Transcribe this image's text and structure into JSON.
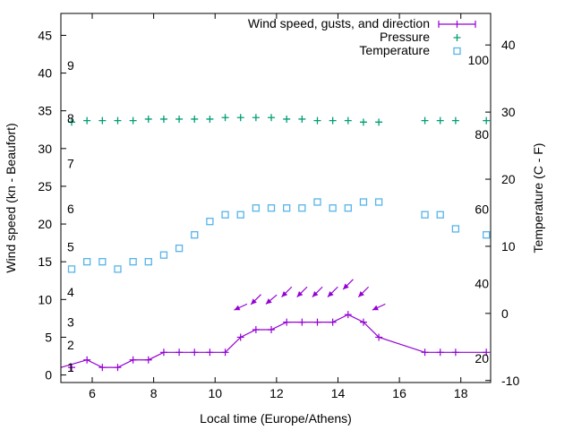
{
  "chart_data": {
    "type": "line",
    "title": "",
    "xlabel": "Local time (Europe/Athens)",
    "ylabel": "Wind speed (kn - Beaufort)",
    "y2label": "Temperature (C - F)",
    "xlim": [
      4.98,
      18.97
    ],
    "ylim": [
      -1.0,
      47.9
    ],
    "y2lim": [
      -10.3,
      44.7
    ],
    "grid": false,
    "legend_position": "top-right",
    "x_ticks": [
      "6",
      "8",
      "10",
      "12",
      "14",
      "16",
      "18"
    ],
    "y_ticks": [
      "0",
      "5",
      "10",
      "15",
      "20",
      "25",
      "30",
      "35",
      "40",
      "45"
    ],
    "y2_ticks": [
      "-10",
      "0",
      "10",
      "20",
      "30",
      "40"
    ],
    "fahrenheit_labels": [
      "20",
      "40",
      "60",
      "80",
      "100"
    ],
    "beaufort_labels": [
      "1",
      "2",
      "3",
      "4",
      "5",
      "6",
      "7",
      "8",
      "9"
    ],
    "beaufort_kn": [
      1,
      4,
      7,
      11,
      17,
      22,
      28,
      34,
      41
    ],
    "legend": [
      "Wind speed, gusts, and direction",
      "Pressure",
      "Temperature"
    ],
    "colors": {
      "wind": "#9400d3",
      "pressure": "#009e73",
      "temperature": "#56b4e9"
    },
    "x": [
      5.33,
      5.83,
      6.33,
      6.83,
      7.33,
      7.83,
      8.33,
      8.83,
      9.33,
      9.83,
      10.33,
      10.83,
      11.33,
      11.83,
      12.33,
      12.83,
      13.33,
      13.83,
      14.33,
      14.83,
      15.33,
      16.83,
      17.33,
      17.83,
      18.83
    ],
    "series": [
      {
        "name": "Wind speed",
        "axis": "y",
        "values": [
          1,
          2,
          1,
          1,
          2,
          2,
          3,
          3,
          3,
          3,
          3,
          5,
          6,
          6,
          7,
          7,
          7,
          7,
          8,
          7,
          5,
          3,
          3,
          3,
          3
        ]
      },
      {
        "name": "Wind direction (from, deg)",
        "axis": "y",
        "values": [
          null,
          null,
          null,
          null,
          null,
          null,
          null,
          null,
          null,
          null,
          null,
          65,
          45,
          50,
          45,
          45,
          45,
          45,
          45,
          45,
          65,
          null,
          null,
          null,
          null
        ]
      },
      {
        "name": "Pressure (hPa)",
        "axis": "y",
        "values": [
          1013.5,
          1013.7,
          1013.7,
          1013.7,
          1013.7,
          1013.9,
          1013.9,
          1013.9,
          1013.9,
          1013.9,
          1014.1,
          1014.1,
          1014.1,
          1014.1,
          1013.9,
          1013.9,
          1013.7,
          1013.7,
          1013.7,
          1013.5,
          1013.5,
          1013.7,
          1013.7,
          1013.7,
          1013.7
        ]
      },
      {
        "name": "Temperature (C)",
        "axis": "y2",
        "values": [
          6.6,
          7.7,
          7.7,
          6.6,
          7.7,
          7.7,
          8.7,
          9.7,
          11.7,
          13.7,
          14.7,
          14.7,
          15.7,
          15.7,
          15.7,
          15.7,
          16.6,
          15.7,
          15.7,
          16.6,
          16.6,
          14.7,
          14.7,
          12.6,
          11.7
        ]
      }
    ]
  }
}
